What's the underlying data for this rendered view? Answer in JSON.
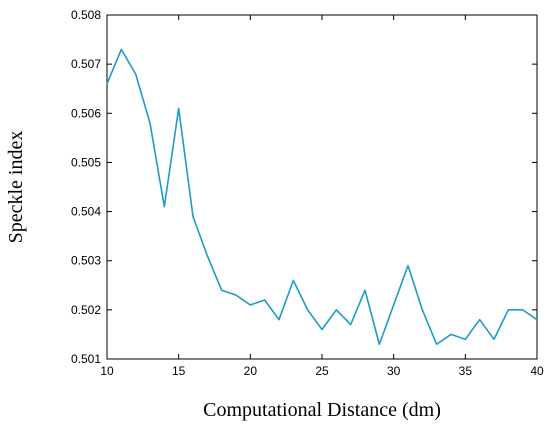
{
  "chart_data": {
    "type": "line",
    "xlabel": "Computational Distance (dm)",
    "ylabel": "Speckle index",
    "xlim": [
      10,
      40
    ],
    "ylim": [
      0.501,
      0.508
    ],
    "xticks": [
      10,
      15,
      20,
      25,
      30,
      35,
      40
    ],
    "yticks": [
      0.501,
      0.502,
      0.503,
      0.504,
      0.505,
      0.506,
      0.507,
      0.508
    ],
    "ytick_labels": [
      "0.501",
      "0.502",
      "0.503",
      "0.504",
      "0.505",
      "0.506",
      "0.507",
      "0.508"
    ],
    "grid": false,
    "series": [
      {
        "color": "#1f9bc9",
        "x": [
          10,
          11,
          12,
          13,
          14,
          15,
          16,
          17,
          18,
          19,
          20,
          21,
          22,
          23,
          24,
          25,
          26,
          27,
          28,
          29,
          30,
          31,
          32,
          33,
          34,
          35,
          36,
          37,
          38,
          39,
          40
        ],
        "y": [
          0.5066,
          0.5073,
          0.5068,
          0.5058,
          0.5041,
          0.5061,
          0.5039,
          0.5031,
          0.5024,
          0.5023,
          0.5021,
          0.5022,
          0.5018,
          0.5026,
          0.502,
          0.5016,
          0.502,
          0.5017,
          0.5024,
          0.5013,
          0.5021,
          0.5029,
          0.502,
          0.5013,
          0.5015,
          0.5014,
          0.5018,
          0.5014,
          0.502,
          0.502,
          0.5018
        ]
      }
    ]
  }
}
